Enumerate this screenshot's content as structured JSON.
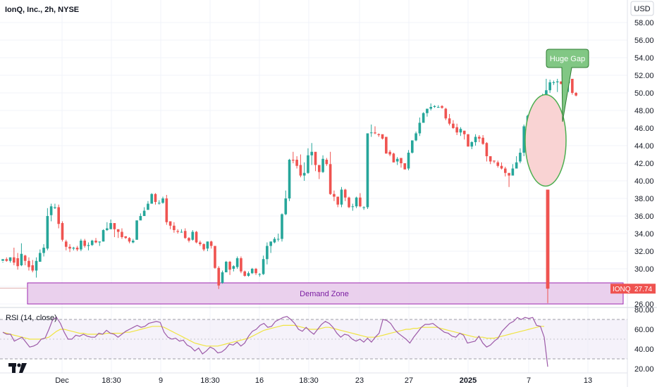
{
  "header": {
    "title": "IonQ, Inc., 2h, NYSE",
    "currency": "USD"
  },
  "chart_data": {
    "type": "candlestick",
    "symbol": "IONQ",
    "last_price": "27.74",
    "y_ticks": [
      "58.00",
      "56.00",
      "54.00",
      "52.00",
      "50.00",
      "48.00",
      "46.00",
      "44.00",
      "42.00",
      "40.00",
      "38.00",
      "36.00",
      "34.00",
      "32.00",
      "30.00",
      "28.00",
      "26.00"
    ],
    "x_ticks": [
      {
        "label": "Dec",
        "bold": false
      },
      {
        "label": "18:30",
        "bold": false
      },
      {
        "label": "9",
        "bold": false
      },
      {
        "label": "18:30",
        "bold": false
      },
      {
        "label": "16",
        "bold": false
      },
      {
        "label": "18:30",
        "bold": false
      },
      {
        "label": "23",
        "bold": false
      },
      {
        "label": "27",
        "bold": false
      },
      {
        "label": "2025",
        "bold": true
      },
      {
        "label": "7",
        "bold": false
      },
      {
        "label": "13",
        "bold": false
      }
    ],
    "candles": [
      [
        30.9,
        31.1,
        30.8,
        30.7
      ],
      [
        31.1,
        30.9,
        31.3,
        30.8
      ],
      [
        30.9,
        31.3,
        31.3,
        30.7
      ],
      [
        31.3,
        30.7,
        32.4,
        30.4
      ],
      [
        31.2,
        30.3,
        31.8,
        29.9
      ],
      [
        30.4,
        31.7,
        32.9,
        30.3
      ],
      [
        31.5,
        30.9,
        31.6,
        30.4
      ],
      [
        30.9,
        30.2,
        31.3,
        29.8
      ],
      [
        30.4,
        29.8,
        31.0,
        29.6
      ],
      [
        29.8,
        30.9,
        31.3,
        29.0
      ],
      [
        30.8,
        31.8,
        32.2,
        30.8
      ],
      [
        31.8,
        32.4,
        32.8,
        31.4
      ],
      [
        32.3,
        36.0,
        36.9,
        32.1
      ],
      [
        36.1,
        37.1,
        37.4,
        35.4
      ],
      [
        36.9,
        37.0,
        37.4,
        36.8
      ],
      [
        37.0,
        35.1,
        37.3,
        34.6
      ],
      [
        35.2,
        33.3,
        35.4,
        33.1
      ],
      [
        33.1,
        32.5,
        33.3,
        32.1
      ],
      [
        32.5,
        32.3,
        32.8,
        31.9
      ],
      [
        32.3,
        32.4,
        32.5,
        32.1
      ],
      [
        32.4,
        32.2,
        32.6,
        32.0
      ],
      [
        32.2,
        33.2,
        33.4,
        32.0
      ],
      [
        33.2,
        32.6,
        33.4,
        32.4
      ],
      [
        32.6,
        32.7,
        33.0,
        32.1
      ],
      [
        32.7,
        33.2,
        33.3,
        32.6
      ],
      [
        33.2,
        33.0,
        33.5,
        32.9
      ],
      [
        33.0,
        33.1,
        33.1,
        32.6
      ],
      [
        33.1,
        34.4,
        34.5,
        33.1
      ],
      [
        34.4,
        34.6,
        35.3,
        34.3
      ],
      [
        34.5,
        35.2,
        35.6,
        34.6
      ],
      [
        35.2,
        34.5,
        34.6,
        33.6
      ],
      [
        34.5,
        34.2,
        34.4,
        33.5
      ],
      [
        34.2,
        33.6,
        34.6,
        33.4
      ],
      [
        33.7,
        33.5,
        33.6,
        33.4
      ],
      [
        33.5,
        33.1,
        33.6,
        32.9
      ],
      [
        33.0,
        33.2,
        33.4,
        32.9
      ],
      [
        33.3,
        35.5,
        35.5,
        33.3
      ],
      [
        35.5,
        36.0,
        36.3,
        35.6
      ],
      [
        36.0,
        36.6,
        37.0,
        36.0
      ],
      [
        36.7,
        37.4,
        37.7,
        36.7
      ],
      [
        37.4,
        38.5,
        38.6,
        37.4
      ],
      [
        38.5,
        37.6,
        38.6,
        37.3
      ],
      [
        37.5,
        37.5,
        37.8,
        37.3
      ],
      [
        37.5,
        38.0,
        38.2,
        37.4
      ],
      [
        38.0,
        35.3,
        38.4,
        35.0
      ],
      [
        35.4,
        34.9,
        35.4,
        34.5
      ],
      [
        34.9,
        34.4,
        35.3,
        34.1
      ],
      [
        34.3,
        34.2,
        34.5,
        34.0
      ],
      [
        34.2,
        34.2,
        34.5,
        34.1
      ],
      [
        34.3,
        33.5,
        34.6,
        33.4
      ],
      [
        33.5,
        33.2,
        33.6,
        33.0
      ],
      [
        33.3,
        34.2,
        34.4,
        33.2
      ],
      [
        34.2,
        33.0,
        34.3,
        32.9
      ],
      [
        33.0,
        32.8,
        33.2,
        32.6
      ],
      [
        32.8,
        32.2,
        32.9,
        32.0
      ],
      [
        32.3,
        33.1,
        33.1,
        32.0
      ],
      [
        33.1,
        32.6,
        33.2,
        32.3
      ],
      [
        32.6,
        30.1,
        32.6,
        30.0
      ],
      [
        30.1,
        28.1,
        30.3,
        27.7
      ],
      [
        28.4,
        29.6,
        29.8,
        28.3
      ],
      [
        29.6,
        30.8,
        30.9,
        29.6
      ],
      [
        30.8,
        29.9,
        30.9,
        29.3
      ],
      [
        30.0,
        30.3,
        30.4,
        29.7
      ],
      [
        30.2,
        31.2,
        31.4,
        30.0
      ],
      [
        31.2,
        29.7,
        31.4,
        29.5
      ],
      [
        29.7,
        29.2,
        29.8,
        29.1
      ],
      [
        29.2,
        29.5,
        29.7,
        29.1
      ],
      [
        29.5,
        30.0,
        30.1,
        29.4
      ],
      [
        30.0,
        29.5,
        30.1,
        29.3
      ],
      [
        29.4,
        29.4,
        29.5,
        29.1
      ],
      [
        29.4,
        31.1,
        31.5,
        29.3
      ],
      [
        31.1,
        32.6,
        33.0,
        30.5
      ],
      [
        32.6,
        33.1,
        33.1,
        31.8
      ],
      [
        33.0,
        33.4,
        33.6,
        32.9
      ],
      [
        33.4,
        33.4,
        34.0,
        33.1
      ],
      [
        33.4,
        36.2,
        36.3,
        33.1
      ],
      [
        36.2,
        38.0,
        38.9,
        36.1
      ],
      [
        38.0,
        42.4,
        42.5,
        37.7
      ],
      [
        42.4,
        42.3,
        43.3,
        42.0
      ],
      [
        42.4,
        41.7,
        42.8,
        41.4
      ],
      [
        41.8,
        40.6,
        43.0,
        40.4
      ],
      [
        40.6,
        40.9,
        42.1,
        40.0
      ],
      [
        40.9,
        42.9,
        43.7,
        40.8
      ],
      [
        42.9,
        43.3,
        44.3,
        41.8
      ],
      [
        43.3,
        41.8,
        42.2,
        41.1
      ],
      [
        41.8,
        41.0,
        41.1,
        40.2
      ],
      [
        41.0,
        42.5,
        42.9,
        40.9
      ],
      [
        42.4,
        41.9,
        42.6,
        41.7
      ],
      [
        41.9,
        38.5,
        43.3,
        38.4
      ],
      [
        38.5,
        38.2,
        38.9,
        37.7
      ],
      [
        38.2,
        37.3,
        38.2,
        37.0
      ],
      [
        37.3,
        39.0,
        39.3,
        37.0
      ],
      [
        39.0,
        38.1,
        39.1,
        37.7
      ],
      [
        38.1,
        37.0,
        38.2,
        36.9
      ],
      [
        37.1,
        37.1,
        37.4,
        36.6
      ],
      [
        37.1,
        38.1,
        38.2,
        36.9
      ],
      [
        38.1,
        37.1,
        38.6,
        37.0
      ],
      [
        37.0,
        37.0,
        37.1,
        36.7
      ],
      [
        37.0,
        45.4,
        45.4,
        36.8
      ],
      [
        45.5,
        45.5,
        46.4,
        45.0
      ],
      [
        45.5,
        45.4,
        46.2,
        45.3
      ],
      [
        45.3,
        45.2,
        45.4,
        45.0
      ],
      [
        45.3,
        44.8,
        44.9,
        44.7
      ],
      [
        45.0,
        43.1,
        44.9,
        43.1
      ],
      [
        43.3,
        43.0,
        43.5,
        42.8
      ],
      [
        43.1,
        42.1,
        43.2,
        42.1
      ],
      [
        42.2,
        42.5,
        42.7,
        41.8
      ],
      [
        42.6,
        42.0,
        42.3,
        41.5
      ],
      [
        42.0,
        41.3,
        42.0,
        41.3
      ],
      [
        41.4,
        43.2,
        43.5,
        41.2
      ],
      [
        43.2,
        44.6,
        44.6,
        43.1
      ],
      [
        44.6,
        45.4,
        45.6,
        44.5
      ],
      [
        45.4,
        46.6,
        47.2,
        45.1
      ],
      [
        46.6,
        47.7,
        47.8,
        46.6
      ],
      [
        47.7,
        48.2,
        48.2,
        47.3
      ],
      [
        48.2,
        48.4,
        48.8,
        48.0
      ],
      [
        48.4,
        48.5,
        48.6,
        48.3
      ],
      [
        48.4,
        48.4,
        48.6,
        48.3
      ],
      [
        48.5,
        48.3,
        48.6,
        48.2
      ],
      [
        48.2,
        47.1,
        48.3,
        46.9
      ],
      [
        47.1,
        46.5,
        47.6,
        46.3
      ],
      [
        46.5,
        46.0,
        46.9,
        45.9
      ],
      [
        46.1,
        45.5,
        46.5,
        45.2
      ],
      [
        45.5,
        45.9,
        46.1,
        45.1
      ],
      [
        45.7,
        45.3,
        45.7,
        44.7
      ],
      [
        45.3,
        43.9,
        45.3,
        43.9
      ],
      [
        43.9,
        44.4,
        44.5,
        43.6
      ],
      [
        44.4,
        45.0,
        45.3,
        44.0
      ],
      [
        45.0,
        44.8,
        45.2,
        44.4
      ],
      [
        44.9,
        44.2,
        45.2,
        44.1
      ],
      [
        44.3,
        42.8,
        44.4,
        42.2
      ],
      [
        42.8,
        42.2,
        42.3,
        41.9
      ],
      [
        42.3,
        42.2,
        42.3,
        42.0
      ],
      [
        42.1,
        41.7,
        42.3,
        41.5
      ],
      [
        41.7,
        41.4,
        42.1,
        41.3
      ],
      [
        41.4,
        40.9,
        41.6,
        40.5
      ],
      [
        40.9,
        40.6,
        40.8,
        39.3
      ],
      [
        40.6,
        41.4,
        41.9,
        40.6
      ],
      [
        41.4,
        42.1,
        42.8,
        41.4
      ],
      [
        42.2,
        43.2,
        43.7,
        42.0
      ],
      [
        43.2,
        46.2,
        46.4,
        42.8
      ],
      [
        46.2,
        47.4,
        47.5,
        46.0
      ],
      [
        47.4,
        47.3,
        47.8,
        46.3
      ],
      [
        47.3,
        47.8,
        48.2,
        46.9
      ],
      [
        47.8,
        47.9,
        48.0,
        47.4
      ],
      [
        47.9,
        49.6,
        49.9,
        47.8
      ],
      [
        49.6,
        50.3,
        51.6,
        49.2
      ],
      [
        50.3,
        51.2,
        51.5,
        50.0
      ],
      [
        51.2,
        51.2,
        51.4,
        50.9
      ],
      [
        51.2,
        51.3,
        51.6,
        50.1
      ],
      [
        51.3,
        51.0,
        51.3,
        51.0
      ],
      [
        51.0,
        50.4,
        54.8,
        49.3
      ],
      [
        51.1,
        51.6,
        51.7,
        50.1
      ],
      [
        51.6,
        50.0,
        51.6,
        49.8
      ],
      [
        50.0,
        49.7,
        50.1,
        49.6
      ]
    ],
    "gap_candle": [
      39.0,
      27.74,
      39.0,
      26.1
    ],
    "annotations": {
      "huge_gap": "Huge Gap",
      "demand_zone": "Demand Zone",
      "demand_zone_range": [
        26.0,
        28.4
      ]
    },
    "rsi": {
      "label": "RSI (14, close)",
      "y_ticks": [
        "80.00",
        "60.00",
        "40.00",
        "20.00"
      ],
      "upper_band": 70,
      "lower_band": 30,
      "rsi_values": [
        57,
        55,
        55,
        48,
        50,
        52,
        47,
        42,
        43,
        45,
        50,
        51,
        60,
        70,
        72,
        66,
        57,
        50,
        50,
        54,
        53,
        55,
        53,
        52,
        52,
        56,
        55,
        59,
        56,
        55,
        52,
        55,
        58,
        60,
        62,
        64,
        62,
        63,
        66,
        67,
        68,
        67,
        57,
        52,
        50,
        51,
        48,
        49,
        44,
        42,
        38,
        41,
        35,
        38,
        42,
        40,
        36,
        37,
        40,
        45,
        44,
        47,
        43,
        46,
        53,
        58,
        60,
        64,
        66,
        62,
        63,
        68,
        70,
        72,
        73,
        70,
        66,
        60,
        58,
        62,
        58,
        55,
        60,
        65,
        68,
        66,
        62,
        56,
        52,
        55,
        54,
        50,
        48,
        50,
        47,
        51,
        47,
        52,
        56,
        70,
        69,
        66,
        60,
        56,
        53,
        50,
        46,
        52,
        57,
        62,
        65,
        65,
        66,
        63,
        60,
        57,
        56,
        53,
        52,
        56,
        54,
        46,
        47,
        48,
        53,
        46,
        42,
        44,
        48,
        51,
        58,
        62,
        66,
        68,
        72,
        70,
        72,
        71,
        72,
        64,
        63,
        52
      ],
      "ma_values": [
        57,
        56,
        55,
        54,
        53,
        52,
        51,
        50,
        50,
        50,
        50,
        51,
        52,
        55,
        58,
        60,
        60,
        59,
        58,
        57,
        56,
        56,
        55,
        55,
        55,
        55,
        55,
        56,
        56,
        56,
        56,
        56,
        57,
        57,
        58,
        59,
        60,
        61,
        62,
        63,
        63,
        63,
        62,
        60,
        58,
        56,
        54,
        52,
        50,
        48,
        46,
        45,
        44,
        43,
        43,
        43,
        43,
        44,
        45,
        46,
        47,
        48,
        49,
        50,
        51,
        53,
        55,
        57,
        59,
        60,
        61,
        62,
        63,
        64,
        64,
        64,
        64,
        63,
        62,
        61,
        60,
        60,
        60,
        61,
        62,
        62,
        61,
        60,
        59,
        58,
        57,
        56,
        55,
        54,
        53,
        52,
        52,
        52,
        53,
        54,
        55,
        56,
        57,
        58,
        59,
        60,
        60,
        61,
        61,
        62,
        62,
        62,
        62,
        62,
        61,
        60,
        59,
        58,
        57,
        56,
        55,
        54,
        53,
        52,
        52,
        52,
        51,
        51,
        51,
        52,
        53,
        54,
        55,
        56,
        57,
        58,
        59,
        60,
        61,
        62,
        63,
        63
      ],
      "last_rsi_drop": 22
    }
  }
}
